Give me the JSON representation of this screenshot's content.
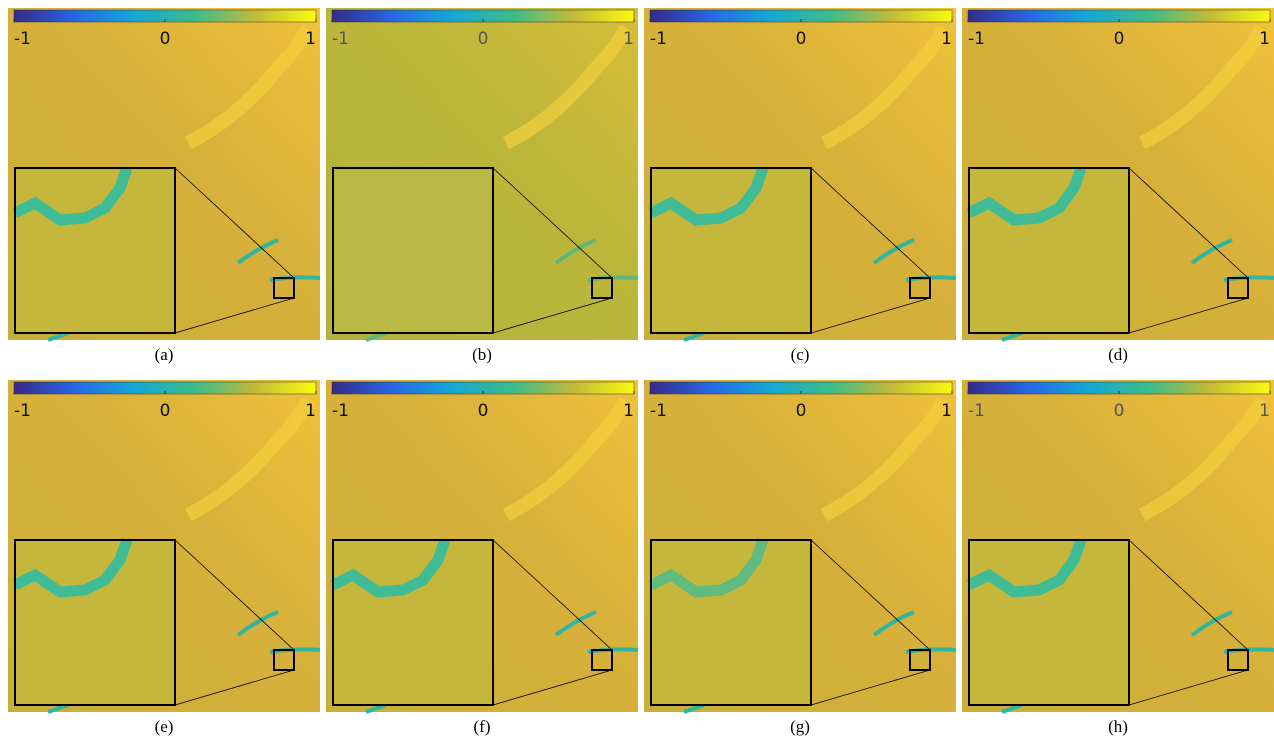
{
  "figure": {
    "colorbar": {
      "range": [
        -1,
        1
      ],
      "ticks": [
        -1,
        0,
        1
      ]
    },
    "panels": [
      {
        "caption": "(a)"
      },
      {
        "caption": "(b)"
      },
      {
        "caption": "(c)"
      },
      {
        "caption": "(d)"
      },
      {
        "caption": "(e)"
      },
      {
        "caption": "(f)"
      },
      {
        "caption": "(g)"
      },
      {
        "caption": "(h)"
      }
    ]
  }
}
